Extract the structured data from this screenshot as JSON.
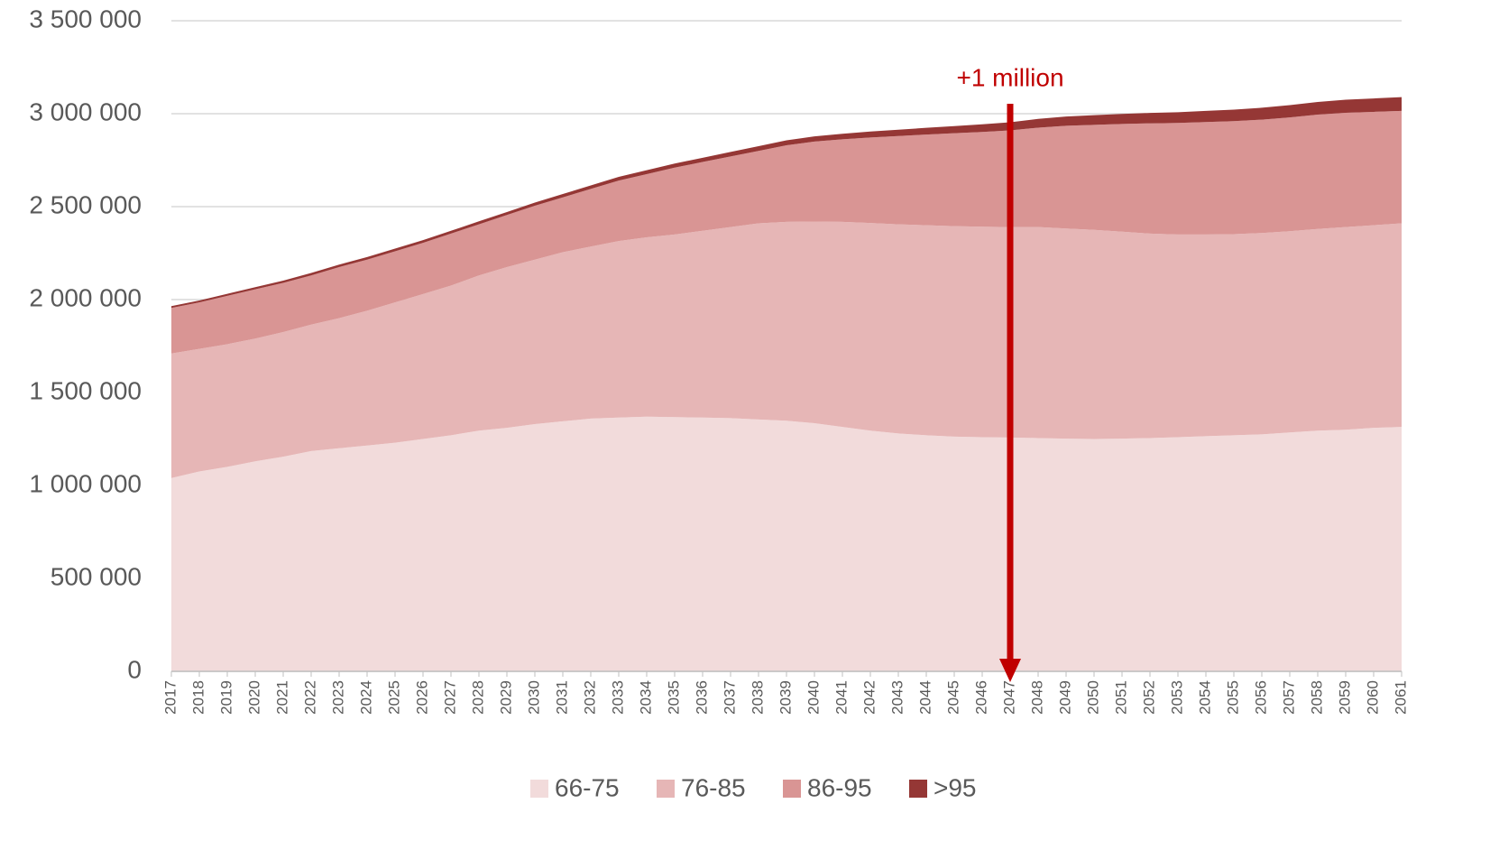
{
  "chart_data": {
    "type": "stacked_area",
    "annotation": "+1 million",
    "annotation_category": "2047",
    "categories": [
      "2017",
      "2018",
      "2019",
      "2020",
      "2021",
      "2022",
      "2023",
      "2024",
      "2025",
      "2026",
      "2027",
      "2028",
      "2029",
      "2030",
      "2031",
      "2032",
      "2033",
      "2034",
      "2035",
      "2036",
      "2037",
      "2038",
      "2039",
      "2040",
      "2041",
      "2042",
      "2043",
      "2044",
      "2045",
      "2046",
      "2047",
      "2048",
      "2049",
      "2050",
      "2051",
      "2052",
      "2053",
      "2054",
      "2055",
      "2056",
      "2057",
      "2058",
      "2059",
      "2060",
      "2061"
    ],
    "series": [
      {
        "name": "66-75",
        "color": "#f2dbdb",
        "values": [
          1040000,
          1075000,
          1100000,
          1130000,
          1155000,
          1185000,
          1200000,
          1215000,
          1230000,
          1250000,
          1270000,
          1295000,
          1310000,
          1330000,
          1345000,
          1360000,
          1365000,
          1370000,
          1368000,
          1365000,
          1362000,
          1355000,
          1348000,
          1335000,
          1315000,
          1295000,
          1280000,
          1270000,
          1263000,
          1260000,
          1258000,
          1255000,
          1252000,
          1250000,
          1252000,
          1255000,
          1260000,
          1265000,
          1270000,
          1275000,
          1285000,
          1295000,
          1300000,
          1310000,
          1315000
        ]
      },
      {
        "name": "76-85",
        "color": "#e6b6b6",
        "values": [
          670000,
          660000,
          660000,
          660000,
          670000,
          680000,
          700000,
          725000,
          755000,
          780000,
          805000,
          835000,
          865000,
          885000,
          910000,
          925000,
          950000,
          965000,
          982000,
          1005000,
          1028000,
          1055000,
          1070000,
          1085000,
          1103000,
          1117000,
          1125000,
          1130000,
          1132000,
          1132000,
          1132000,
          1135000,
          1130000,
          1125000,
          1113000,
          1100000,
          1090000,
          1085000,
          1082000,
          1083000,
          1083000,
          1085000,
          1090000,
          1090000,
          1095000
        ]
      },
      {
        "name": "86-95",
        "color": "#d99594",
        "values": [
          245000,
          250000,
          260000,
          265000,
          265000,
          265000,
          275000,
          275000,
          275000,
          275000,
          280000,
          275000,
          280000,
          290000,
          295000,
          310000,
          325000,
          340000,
          360000,
          370000,
          380000,
          390000,
          412000,
          430000,
          444000,
          460000,
          475000,
          488000,
          500000,
          510000,
          520000,
          535000,
          553000,
          565000,
          580000,
          593000,
          600000,
          605000,
          608000,
          610000,
          612000,
          615000,
          615000,
          610000,
          605000
        ]
      },
      {
        "name": ">95",
        "color": "#953735",
        "values": [
          10000,
          10000,
          11000,
          12000,
          12000,
          13000,
          13000,
          14000,
          14000,
          15000,
          15000,
          16000,
          16000,
          17000,
          18000,
          19000,
          20000,
          21000,
          22000,
          23000,
          24000,
          25000,
          27000,
          28000,
          30000,
          32000,
          34000,
          36000,
          38000,
          41000,
          44000,
          47000,
          50000,
          52000,
          54000,
          56000,
          58000,
          60000,
          62000,
          64000,
          66000,
          68000,
          70000,
          72000,
          74000
        ]
      }
    ],
    "ylim": [
      0,
      3500000
    ],
    "yticks": [
      0,
      {
        "value": 500000,
        "label": "500 000"
      },
      {
        "value": 1000000,
        "label": "1 000 000"
      },
      {
        "value": 1500000,
        "label": "1 500 000"
      },
      {
        "value": 2000000,
        "label": "2 000 000"
      },
      {
        "value": 2500000,
        "label": "2 500 000"
      },
      {
        "value": 3000000,
        "label": "3 000 000"
      },
      {
        "value": 3500000,
        "label": "3 500 000"
      }
    ],
    "grid": true
  }
}
